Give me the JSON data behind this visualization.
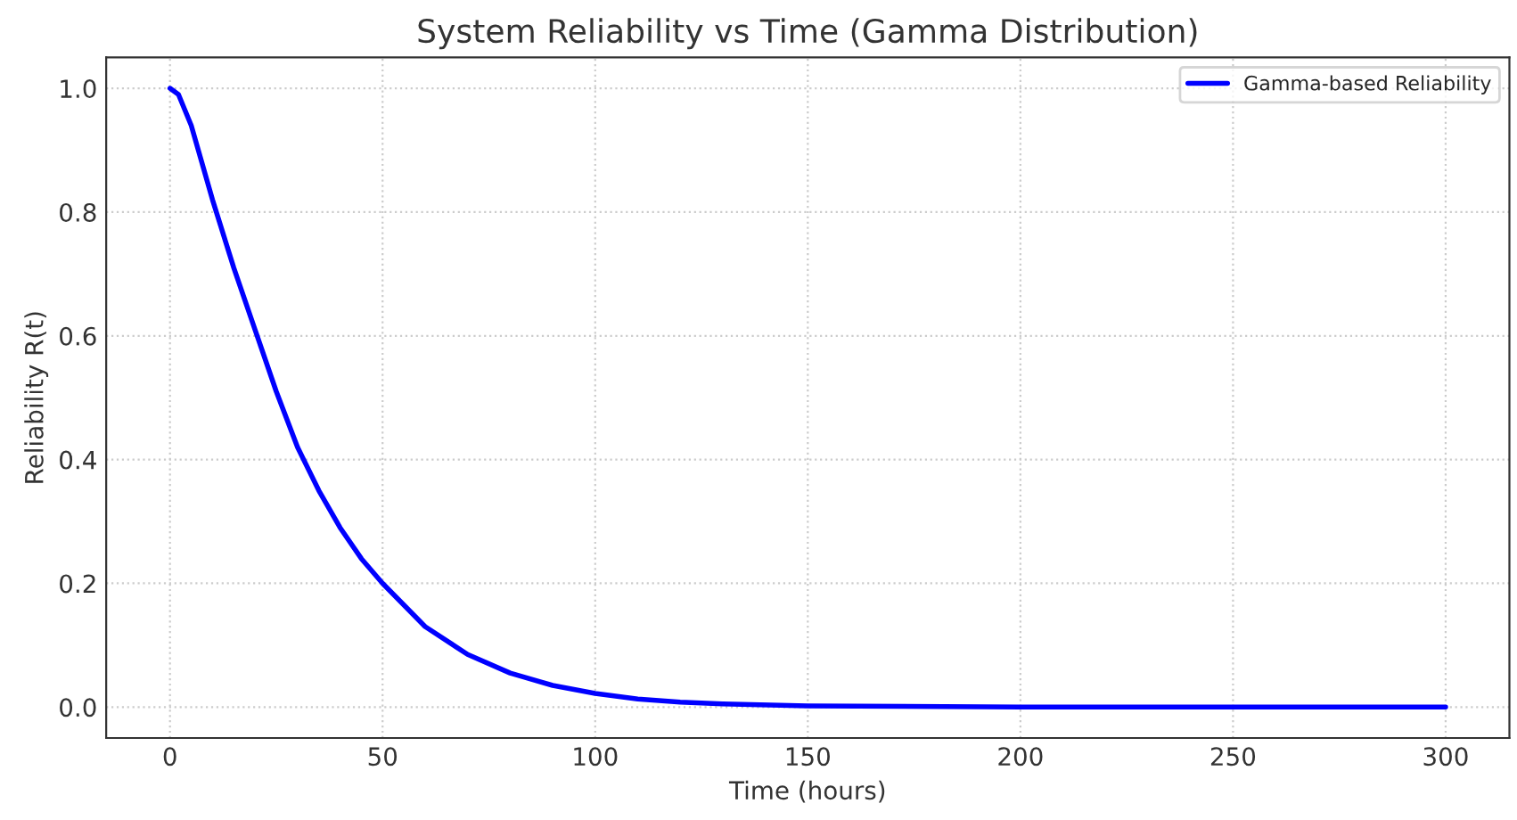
{
  "chart_data": {
    "type": "line",
    "title": "System Reliability vs Time (Gamma Distribution)",
    "xlabel": "Time (hours)",
    "ylabel": "Reliability R(t)",
    "x": [
      0,
      2,
      5,
      10,
      15,
      20,
      25,
      30,
      35,
      40,
      45,
      50,
      60,
      70,
      80,
      90,
      100,
      110,
      120,
      130,
      150,
      200,
      250,
      300
    ],
    "series": [
      {
        "name": "Gamma-based Reliability",
        "color": "#0000ff",
        "values": [
          1.0,
          0.99,
          0.94,
          0.82,
          0.71,
          0.61,
          0.51,
          0.42,
          0.35,
          0.29,
          0.24,
          0.2,
          0.13,
          0.085,
          0.055,
          0.035,
          0.022,
          0.013,
          0.008,
          0.005,
          0.002,
          0.0,
          0.0,
          0.0
        ]
      }
    ],
    "xlim": [
      -15,
      315
    ],
    "xticks": [
      0,
      50,
      100,
      150,
      200,
      250,
      300
    ],
    "ylim": [
      -0.05,
      1.05
    ],
    "yticks": [
      {
        "value": 0,
        "label": "0.0"
      },
      {
        "value": 0.2,
        "label": "0.2"
      },
      {
        "value": 0.4,
        "label": "0.4"
      },
      {
        "value": 0.6,
        "label": "0.6"
      },
      {
        "value": 0.8,
        "label": "0.8"
      },
      {
        "value": 1.0,
        "label": "1.0"
      }
    ],
    "grid": true,
    "legend": "top right",
    "line_style": "solid",
    "marker": "none"
  }
}
